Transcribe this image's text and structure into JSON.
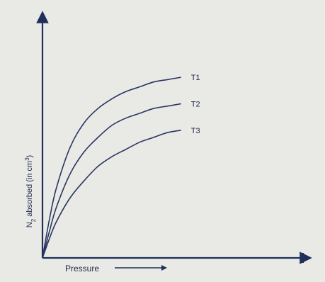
{
  "chart_data": {
    "type": "line",
    "title": "",
    "xlabel": "Pressure",
    "ylabel_parts": {
      "symbol": "N",
      "subscript": "2",
      "text": " absorbed (in cm",
      "superscript": "3",
      "close": ")"
    },
    "x": [
      0,
      0.05,
      0.1,
      0.2,
      0.3,
      0.4,
      0.5,
      0.6,
      0.7,
      0.8,
      0.9,
      1.0
    ],
    "xlim": [
      0,
      1.9
    ],
    "ylim": [
      0,
      1.0
    ],
    "grid": false,
    "series": [
      {
        "name": "T1",
        "values": [
          0,
          0.16,
          0.29,
          0.46,
          0.56,
          0.62,
          0.66,
          0.69,
          0.71,
          0.73,
          0.74,
          0.75
        ]
      },
      {
        "name": "T2",
        "values": [
          0,
          0.11,
          0.21,
          0.35,
          0.44,
          0.5,
          0.55,
          0.58,
          0.6,
          0.62,
          0.63,
          0.64
        ]
      },
      {
        "name": "T3",
        "values": [
          0,
          0.08,
          0.15,
          0.25,
          0.32,
          0.38,
          0.42,
          0.45,
          0.48,
          0.5,
          0.52,
          0.53
        ]
      }
    ]
  }
}
